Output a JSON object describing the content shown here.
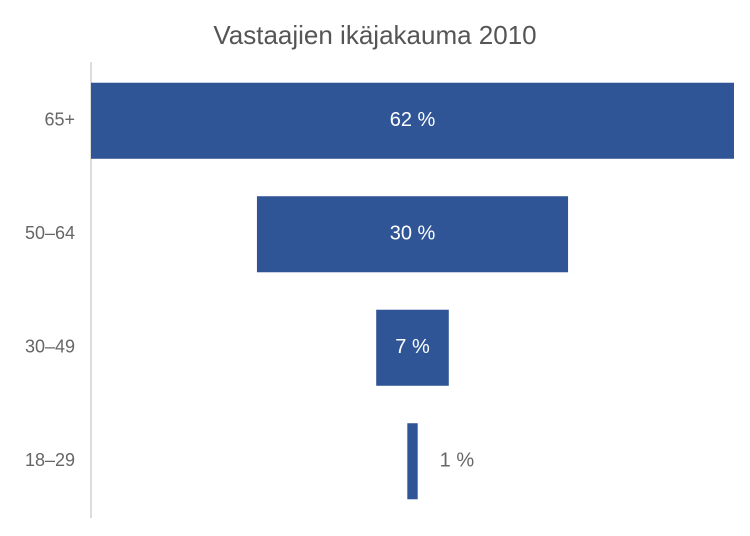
{
  "chart_data": {
    "type": "funnel",
    "title": "Vastaajien ikäjakauma 2010",
    "categories": [
      "65+",
      "50–64",
      "30–49",
      "18–29"
    ],
    "values": [
      62,
      30,
      7,
      1
    ],
    "value_labels": [
      "62 %",
      "30 %",
      "7 %",
      "1 %"
    ],
    "color": "#2f5597"
  }
}
